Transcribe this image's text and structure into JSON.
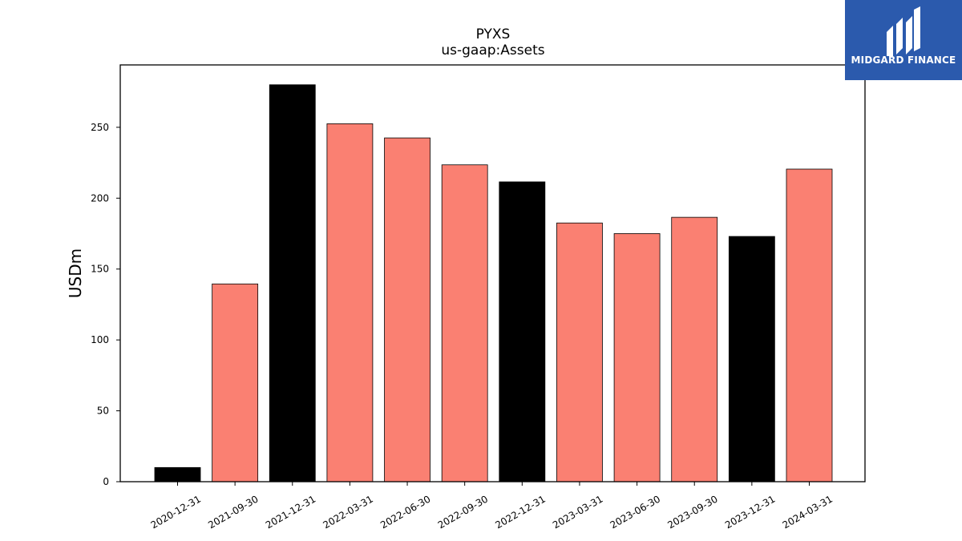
{
  "chart_data": {
    "type": "bar",
    "title": "PYXS",
    "subtitle": "us-gaap:Assets",
    "xlabel": "",
    "ylabel": "USDm",
    "categories": [
      "2020-12-31",
      "2021-09-30",
      "2021-12-31",
      "2022-03-31",
      "2022-06-30",
      "2022-09-30",
      "2022-12-31",
      "2023-03-31",
      "2023-06-30",
      "2023-09-30",
      "2023-12-31",
      "2024-03-31"
    ],
    "values": [
      10,
      139.5,
      280,
      252.5,
      242.5,
      223.5,
      211.5,
      182.5,
      175,
      186.5,
      173,
      220.5
    ],
    "bar_colors": [
      "#000000",
      "#fa8072",
      "#000000",
      "#fa8072",
      "#fa8072",
      "#fa8072",
      "#000000",
      "#fa8072",
      "#fa8072",
      "#fa8072",
      "#000000",
      "#fa8072"
    ],
    "yticks": [
      0,
      50,
      100,
      150,
      200,
      250
    ],
    "ylim": [
      0,
      294
    ],
    "grid": false,
    "legend": "none"
  },
  "logo": {
    "text": "MIDGARD FINANCE",
    "background": "#2b5aad"
  }
}
